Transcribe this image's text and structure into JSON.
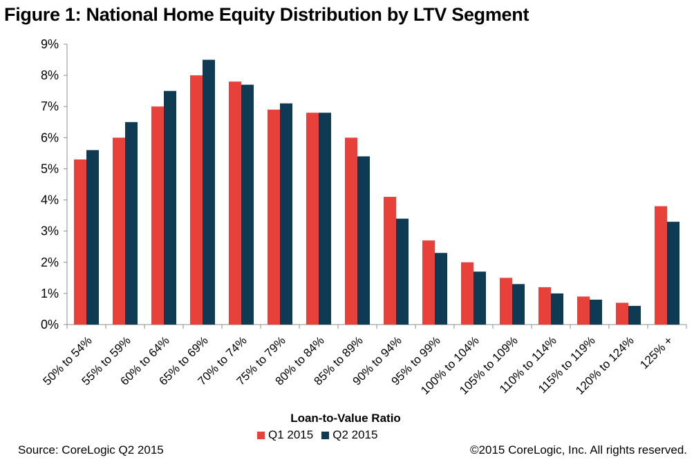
{
  "title": "Figure 1: National Home Equity Distribution by LTV Segment",
  "source": "Source: CoreLogic Q2 2015",
  "copyright": "©2015 CoreLogic, Inc. All rights reserved.",
  "colors": {
    "q1": "#e8413a",
    "q2": "#0f3a54"
  },
  "chart_data": {
    "type": "bar",
    "title": "Figure 1: National Home Equity Distribution by LTV Segment",
    "xlabel": "Loan-to-Value Ratio",
    "ylabel": "",
    "ylim": [
      0,
      9
    ],
    "yticks": [
      "0%",
      "1%",
      "2%",
      "3%",
      "4%",
      "5%",
      "6%",
      "7%",
      "8%",
      "9%"
    ],
    "grid": false,
    "legend": "bottom",
    "categories": [
      "50% to 54%",
      "55% to 59%",
      "60% to 64%",
      "65% to 69%",
      "70% to 74%",
      "75% to 79%",
      "80% to 84%",
      "85% to 89%",
      "90% to 94%",
      "95% to 99%",
      "100% to 104%",
      "105% to 109%",
      "110% to 114%",
      "115% to 119%",
      "120% to 124%",
      "125% +"
    ],
    "series": [
      {
        "name": "Q1 2015",
        "values": [
          5.3,
          6.0,
          7.0,
          8.0,
          7.8,
          6.9,
          6.8,
          6.0,
          4.1,
          2.7,
          2.0,
          1.5,
          1.2,
          0.9,
          0.7,
          3.8
        ]
      },
      {
        "name": "Q2 2015",
        "values": [
          5.6,
          6.5,
          7.5,
          8.5,
          7.7,
          7.1,
          6.8,
          5.4,
          3.4,
          2.3,
          1.7,
          1.3,
          1.0,
          0.8,
          0.6,
          3.3
        ]
      }
    ]
  }
}
